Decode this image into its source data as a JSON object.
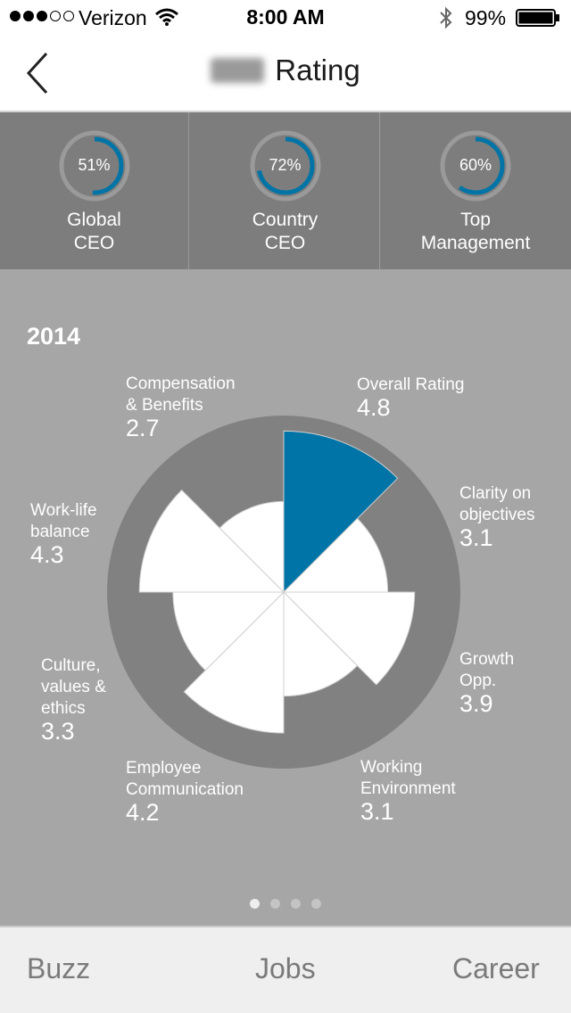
{
  "status_bar": {
    "carrier": "Verizon",
    "time": "8:00 AM",
    "battery": "99%",
    "signal_bars_filled": 3,
    "signal_bars_total": 5
  },
  "nav": {
    "title": "Rating"
  },
  "gauges": [
    {
      "percent_label": "51%",
      "value": 51,
      "label_line1": "Global",
      "label_line2": "CEO"
    },
    {
      "percent_label": "72%",
      "value": 72,
      "label_line1": "Country",
      "label_line2": "CEO"
    },
    {
      "percent_label": "60%",
      "value": 60,
      "label_line1": "Top",
      "label_line2": "Management"
    }
  ],
  "colors": {
    "accent": "#0074a6",
    "gauge_track": "#9a9a9a",
    "rose_background": "#818181",
    "petal": "#ffffff"
  },
  "chart_data": {
    "type": "polar-area",
    "title": "2014",
    "max_value": 5,
    "categories": [
      {
        "name_line1": "Overall Rating",
        "name_line2": "",
        "name_line3": "",
        "value_label": "4.8",
        "value": 4.8,
        "highlight": true
      },
      {
        "name_line1": "Clarity on",
        "name_line2": "objectives",
        "name_line3": "",
        "value_label": "3.1",
        "value": 3.1,
        "highlight": false
      },
      {
        "name_line1": "Growth",
        "name_line2": "Opp.",
        "name_line3": "",
        "value_label": "3.9",
        "value": 3.9,
        "highlight": false
      },
      {
        "name_line1": "Working",
        "name_line2": "Environment",
        "name_line3": "",
        "value_label": "3.1",
        "value": 3.1,
        "highlight": false
      },
      {
        "name_line1": "Employee",
        "name_line2": "Communication",
        "name_line3": "",
        "value_label": "4.2",
        "value": 4.2,
        "highlight": false
      },
      {
        "name_line1": "Culture,",
        "name_line2": "values &",
        "name_line3": "ethics",
        "value_label": "3.3",
        "value": 3.3,
        "highlight": false
      },
      {
        "name_line1": "Work-life",
        "name_line2": "balance",
        "name_line3": "",
        "value_label": "4.3",
        "value": 4.3,
        "highlight": false
      },
      {
        "name_line1": "Compensation",
        "name_line2": "& Benefits",
        "name_line3": "",
        "value_label": "2.7",
        "value": 2.7,
        "highlight": false
      }
    ]
  },
  "pager": {
    "total_pages": 4,
    "current_page": 1
  },
  "tabs": [
    {
      "label": "Buzz"
    },
    {
      "label": "Jobs"
    },
    {
      "label": "Career"
    }
  ]
}
